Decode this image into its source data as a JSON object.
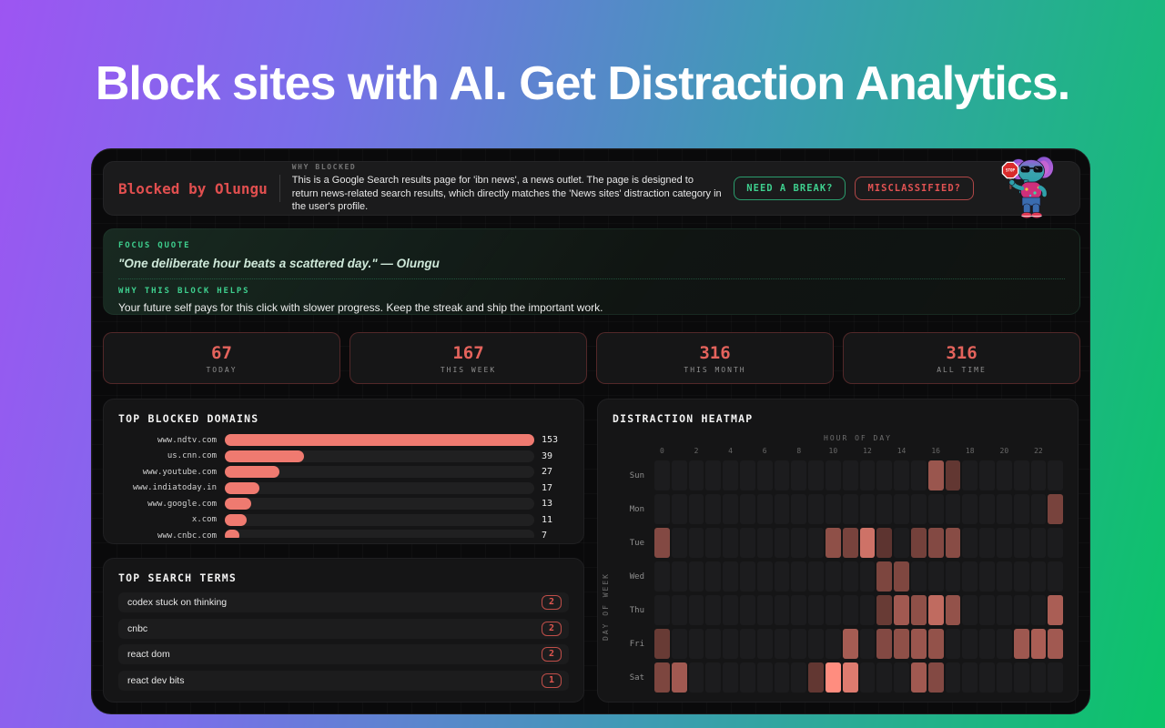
{
  "headline": "Block sites with AI. Get Distraction Analytics.",
  "header": {
    "brand": "Blocked by Olungu",
    "why_blocked_label": "WHY BLOCKED",
    "why_blocked_text": "This is a Google Search results page for 'ibn news', a news outlet. The page is designed to return news-related search results, which directly matches the 'News sites' distraction category in the user's profile.",
    "break_button": "NEED A BREAK?",
    "misclassified_button": "MISCLASSIFIED?",
    "stop_sign_text": "STOP",
    "mascot": "elephant-with-stop-sign"
  },
  "focus": {
    "quote_label": "FOCUS QUOTE",
    "quote": "\"One deliberate hour beats a scattered day.\" — Olungu",
    "helps_label": "WHY THIS BLOCK HELPS",
    "helps_text": "Your future self pays for this click with slower progress. Keep the streak and ship the important work."
  },
  "stats": [
    {
      "value": "67",
      "label": "TODAY"
    },
    {
      "value": "167",
      "label": "THIS WEEK"
    },
    {
      "value": "316",
      "label": "THIS MONTH"
    },
    {
      "value": "316",
      "label": "ALL TIME"
    }
  ],
  "search_terms": {
    "title": "TOP SEARCH TERMS",
    "rows": [
      {
        "term": "codex stuck on thinking",
        "count": "2"
      },
      {
        "term": "cnbc",
        "count": "2"
      },
      {
        "term": "react dom",
        "count": "2"
      },
      {
        "term": "react dev bits",
        "count": "1"
      }
    ]
  },
  "chart_data": [
    {
      "type": "bar",
      "title": "TOP BLOCKED DOMAINS",
      "orientation": "horizontal",
      "categories": [
        "www.ndtv.com",
        "us.cnn.com",
        "www.youtube.com",
        "www.indiatoday.in",
        "www.google.com",
        "x.com",
        "www.cnbc.com"
      ],
      "values": [
        153,
        39,
        27,
        17,
        13,
        11,
        7
      ],
      "xlim": [
        0,
        153
      ],
      "bar_color": "#ef7a70",
      "legend": "none",
      "grid": false
    },
    {
      "type": "heatmap",
      "title": "DISTRACTION HEATMAP",
      "xlabel": "HOUR OF DAY",
      "ylabel": "DAY OF WEEK",
      "hours": 24,
      "x_ticks": [
        0,
        2,
        4,
        6,
        8,
        10,
        12,
        14,
        16,
        18,
        20,
        22
      ],
      "days": [
        "Sun",
        "Mon",
        "Tue",
        "Wed",
        "Thu",
        "Fri",
        "Sat"
      ],
      "cells": [
        {
          "day": "Sun",
          "hour": 16,
          "v": 0.55
        },
        {
          "day": "Sun",
          "hour": 17,
          "v": 0.3
        },
        {
          "day": "Mon",
          "hour": 23,
          "v": 0.4
        },
        {
          "day": "Tue",
          "hour": 0,
          "v": 0.45
        },
        {
          "day": "Tue",
          "hour": 10,
          "v": 0.5
        },
        {
          "day": "Tue",
          "hour": 11,
          "v": 0.4
        },
        {
          "day": "Tue",
          "hour": 12,
          "v": 0.78
        },
        {
          "day": "Tue",
          "hour": 13,
          "v": 0.28
        },
        {
          "day": "Tue",
          "hour": 15,
          "v": 0.38
        },
        {
          "day": "Tue",
          "hour": 16,
          "v": 0.45
        },
        {
          "day": "Tue",
          "hour": 17,
          "v": 0.47
        },
        {
          "day": "Wed",
          "hour": 13,
          "v": 0.42
        },
        {
          "day": "Wed",
          "hour": 14,
          "v": 0.43
        },
        {
          "day": "Thu",
          "hour": 13,
          "v": 0.33
        },
        {
          "day": "Thu",
          "hour": 14,
          "v": 0.58
        },
        {
          "day": "Thu",
          "hour": 15,
          "v": 0.5
        },
        {
          "day": "Thu",
          "hour": 16,
          "v": 0.72
        },
        {
          "day": "Thu",
          "hour": 17,
          "v": 0.52
        },
        {
          "day": "Thu",
          "hour": 23,
          "v": 0.62
        },
        {
          "day": "Fri",
          "hour": 0,
          "v": 0.33
        },
        {
          "day": "Fri",
          "hour": 11,
          "v": 0.6
        },
        {
          "day": "Fri",
          "hour": 13,
          "v": 0.45
        },
        {
          "day": "Fri",
          "hour": 14,
          "v": 0.5
        },
        {
          "day": "Fri",
          "hour": 15,
          "v": 0.55
        },
        {
          "day": "Fri",
          "hour": 16,
          "v": 0.52
        },
        {
          "day": "Fri",
          "hour": 21,
          "v": 0.57
        },
        {
          "day": "Fri",
          "hour": 22,
          "v": 0.62
        },
        {
          "day": "Fri",
          "hour": 23,
          "v": 0.58
        },
        {
          "day": "Sat",
          "hour": 0,
          "v": 0.42
        },
        {
          "day": "Sat",
          "hour": 1,
          "v": 0.58
        },
        {
          "day": "Sat",
          "hour": 9,
          "v": 0.3
        },
        {
          "day": "Sat",
          "hour": 10,
          "v": 1.0
        },
        {
          "day": "Sat",
          "hour": 11,
          "v": 0.85
        },
        {
          "day": "Sat",
          "hour": 15,
          "v": 0.58
        },
        {
          "day": "Sat",
          "hour": 16,
          "v": 0.45
        }
      ]
    }
  ],
  "colors": {
    "accent_red": "#e05252",
    "accent_green": "#3ecf8e",
    "bar_salmon": "#ef7a70",
    "gradient_left": "#9d55f2",
    "gradient_right": "#0bc468",
    "card_bg": "#0a0a0b"
  }
}
